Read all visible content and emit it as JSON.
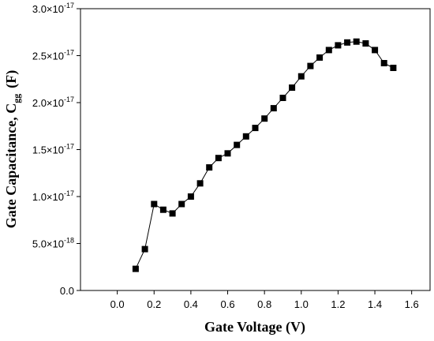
{
  "chart_data": {
    "type": "line",
    "markers": "square",
    "title": "",
    "xlabel": "Gate Voltage (V)",
    "ylabel_main": "Gate Capacitance, C",
    "ylabel_sub": "gg",
    "ylabel_unit": "(F)",
    "xlim": [
      -0.2,
      1.7
    ],
    "ylim": [
      0,
      3e-17
    ],
    "legend": "none",
    "grid": false,
    "x_ticks": [
      {
        "value": 0.0,
        "label": "0.0"
      },
      {
        "value": 0.2,
        "label": "0.2"
      },
      {
        "value": 0.4,
        "label": "0.4"
      },
      {
        "value": 0.6,
        "label": "0.6"
      },
      {
        "value": 0.8,
        "label": "0.8"
      },
      {
        "value": 1.0,
        "label": "1.0"
      },
      {
        "value": 1.2,
        "label": "1.2"
      },
      {
        "value": 1.4,
        "label": "1.4"
      },
      {
        "value": 1.6,
        "label": "1.6"
      }
    ],
    "y_ticks": [
      {
        "value": 0,
        "mantissa": "0.0",
        "exponent": ""
      },
      {
        "value": 5e-18,
        "mantissa": "5.0×10",
        "exponent": "-18"
      },
      {
        "value": 1e-17,
        "mantissa": "1.0×10",
        "exponent": "-17"
      },
      {
        "value": 1.5e-17,
        "mantissa": "1.5×10",
        "exponent": "-17"
      },
      {
        "value": 2e-17,
        "mantissa": "2.0×10",
        "exponent": "-17"
      },
      {
        "value": 2.5e-17,
        "mantissa": "2.5×10",
        "exponent": "-17"
      },
      {
        "value": 3e-17,
        "mantissa": "3.0×10",
        "exponent": "-17"
      }
    ],
    "series": [
      {
        "color": "#000000",
        "x": [
          0.1,
          0.15,
          0.2,
          0.25,
          0.3,
          0.35,
          0.4,
          0.45,
          0.5,
          0.55,
          0.6,
          0.65,
          0.7,
          0.75,
          0.8,
          0.85,
          0.9,
          0.95,
          1.0,
          1.05,
          1.1,
          1.15,
          1.2,
          1.25,
          1.3,
          1.35,
          1.4,
          1.45,
          1.5
        ],
        "y": [
          2.3e-18,
          4.4e-18,
          9.2e-18,
          8.6e-18,
          8.2e-18,
          9.2e-18,
          1e-17,
          1.14e-17,
          1.31e-17,
          1.41e-17,
          1.46e-17,
          1.55e-17,
          1.64e-17,
          1.73e-17,
          1.83e-17,
          1.94e-17,
          2.05e-17,
          2.16e-17,
          2.28e-17,
          2.39e-17,
          2.48e-17,
          2.56e-17,
          2.61e-17,
          2.64e-17,
          2.65e-17,
          2.63e-17,
          2.56e-17,
          2.42e-17,
          2.37e-17
        ]
      }
    ]
  }
}
